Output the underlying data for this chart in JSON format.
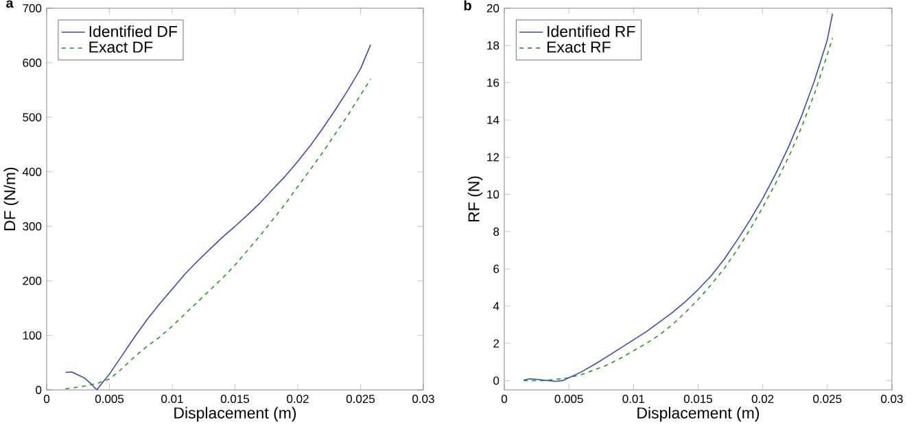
{
  "chart_data": [
    {
      "type": "line",
      "annotations": [
        "a"
      ],
      "xlabel": "Displacement (m)",
      "ylabel": "DF (N/m)",
      "xlim": [
        0,
        0.03
      ],
      "ylim": [
        0,
        700
      ],
      "xticks": [
        0,
        0.005,
        0.01,
        0.015,
        0.02,
        0.025,
        0.03
      ],
      "yticks": [
        0,
        100,
        200,
        300,
        400,
        500,
        600,
        700
      ],
      "legend": "top left",
      "series": [
        {
          "name": "Identified DF",
          "color": "#3b45c4",
          "line_style": "solid",
          "x": [
            0.0015,
            0.002,
            0.003,
            0.0035,
            0.004,
            0.0045,
            0.005,
            0.006,
            0.007,
            0.008,
            0.009,
            0.01,
            0.011,
            0.012,
            0.013,
            0.014,
            0.015,
            0.016,
            0.017,
            0.018,
            0.019,
            0.02,
            0.021,
            0.022,
            0.023,
            0.024,
            0.025,
            0.0258
          ],
          "values": [
            32,
            33,
            22,
            12,
            0,
            15,
            29,
            63,
            97,
            129,
            158,
            185,
            212,
            236,
            258,
            280,
            300,
            321,
            343,
            368,
            392,
            419,
            448,
            480,
            514,
            550,
            589,
            633
          ]
        },
        {
          "name": "Exact DF",
          "color": "#1a9a1a",
          "line_style": "dashed",
          "x": [
            0.0015,
            0.003,
            0.004,
            0.005,
            0.006,
            0.007,
            0.008,
            0.009,
            0.01,
            0.011,
            0.012,
            0.013,
            0.014,
            0.015,
            0.016,
            0.017,
            0.018,
            0.019,
            0.02,
            0.021,
            0.022,
            0.023,
            0.024,
            0.025,
            0.0258
          ],
          "values": [
            2,
            7,
            12,
            20,
            39,
            61,
            80,
            97,
            117,
            139,
            161,
            183,
            205,
            229,
            256,
            283,
            312,
            341,
            373,
            404,
            436,
            470,
            504,
            541,
            570
          ]
        }
      ]
    },
    {
      "type": "line",
      "annotations": [
        "b"
      ],
      "xlabel": "Displacement (m)",
      "ylabel": "RF (N)",
      "xlim": [
        0,
        0.03
      ],
      "ylim": [
        -0.5,
        20
      ],
      "xticks": [
        0,
        0.005,
        0.01,
        0.015,
        0.02,
        0.025,
        0.03
      ],
      "yticks": [
        0,
        2,
        4,
        6,
        8,
        10,
        12,
        14,
        16,
        18,
        20
      ],
      "legend": "top left",
      "series": [
        {
          "name": "Identified RF",
          "color": "#3b45c4",
          "line_style": "solid",
          "x": [
            0.0015,
            0.002,
            0.0025,
            0.003,
            0.004,
            0.0045,
            0.005,
            0.006,
            0.007,
            0.008,
            0.009,
            0.01,
            0.011,
            0.012,
            0.013,
            0.014,
            0.015,
            0.016,
            0.017,
            0.018,
            0.019,
            0.02,
            0.021,
            0.022,
            0.023,
            0.024,
            0.025,
            0.0254
          ],
          "values": [
            0.03,
            0.1,
            0.07,
            0.03,
            -0.04,
            0,
            0.15,
            0.48,
            0.88,
            1.31,
            1.75,
            2.19,
            2.63,
            3.14,
            3.65,
            4.23,
            4.89,
            5.62,
            6.5,
            7.52,
            8.6,
            9.78,
            11.1,
            12.55,
            14.2,
            16.1,
            18.3,
            19.7
          ]
        },
        {
          "name": "Exact RF",
          "color": "#1a9a1a",
          "line_style": "dashed",
          "x": [
            0.0015,
            0.003,
            0.004,
            0.005,
            0.006,
            0.007,
            0.008,
            0.009,
            0.01,
            0.011,
            0.012,
            0.013,
            0.014,
            0.015,
            0.016,
            0.017,
            0.018,
            0.019,
            0.02,
            0.021,
            0.022,
            0.023,
            0.024,
            0.025,
            0.0254
          ],
          "values": [
            0,
            0,
            0.07,
            0.15,
            0.33,
            0.58,
            0.85,
            1.2,
            1.6,
            2.0,
            2.45,
            3.0,
            3.65,
            4.35,
            5.15,
            6.0,
            7.0,
            8.1,
            9.3,
            10.6,
            12.0,
            13.6,
            15.4,
            17.5,
            18.4
          ]
        }
      ]
    }
  ]
}
